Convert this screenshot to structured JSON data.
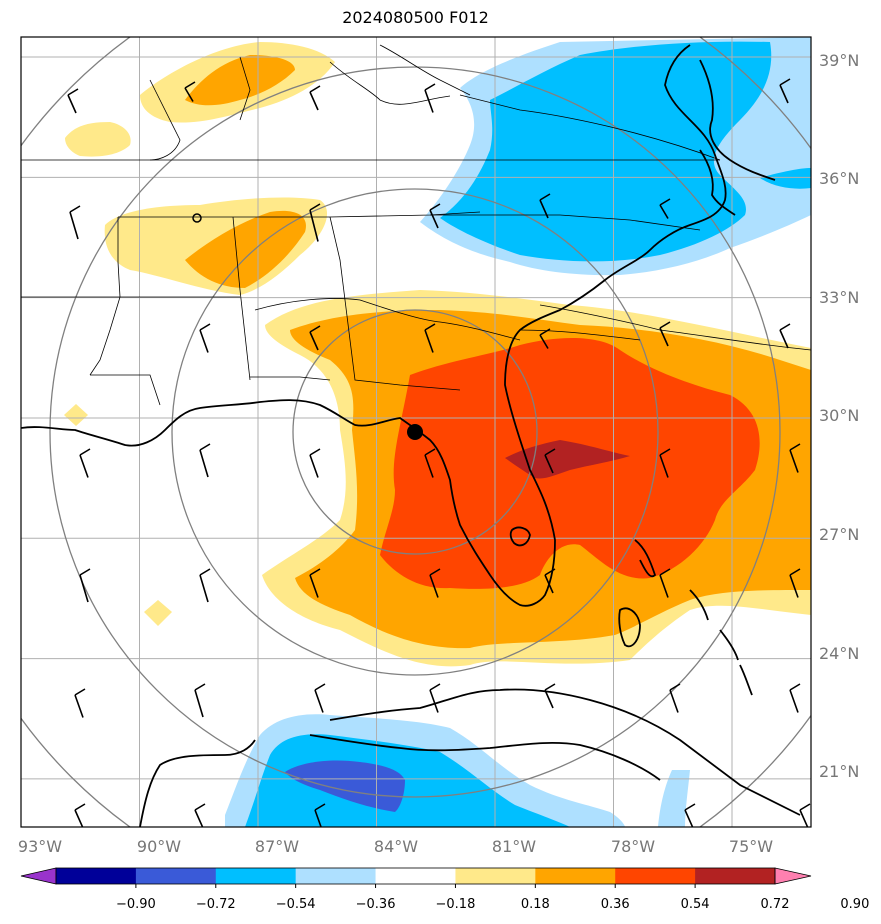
{
  "title": "2024080500 F012",
  "axes": {
    "lon_labels": [
      "93°W",
      "90°W",
      "87°W",
      "84°W",
      "81°W",
      "78°W",
      "75°W"
    ],
    "lat_labels": [
      "39°N",
      "36°N",
      "33°N",
      "30°N",
      "27°N",
      "24°N",
      "21°N"
    ],
    "lon_range": [
      -93.0,
      -73.0
    ],
    "lat_range": [
      19.8,
      39.5
    ],
    "gridlines": true
  },
  "colorbar": {
    "tick_labels": [
      "−0.90",
      "−0.72",
      "−0.54",
      "−0.36",
      "−0.18",
      "0.18",
      "0.36",
      "0.54",
      "0.72",
      "0.90"
    ],
    "colors": [
      "#9933cc",
      "#000099",
      "#3a5ad8",
      "#00bfff",
      "#aee0ff",
      "#ffffff",
      "#ffe98a",
      "#ffa500",
      "#ff4500",
      "#b22222",
      "#ff80b0"
    ],
    "extend": "both"
  },
  "storm_center": {
    "lon": -83.4,
    "lat": 29.6
  },
  "range_rings": true,
  "colors": {
    "grid": "#b0b0b0",
    "ring": "#808080",
    "coast": "#000000"
  }
}
